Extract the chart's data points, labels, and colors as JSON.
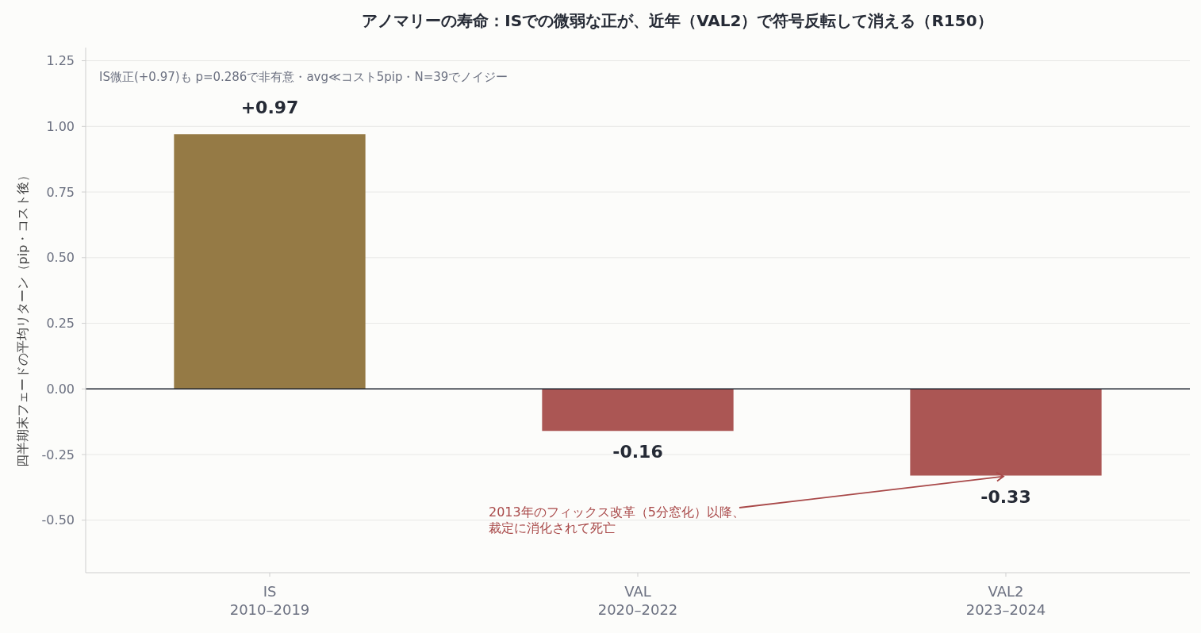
{
  "chart_data": {
    "type": "bar",
    "title": "アノマリーの寿命：ISでの微弱な正が、近年（VAL2）で符号反転して消える（R150）",
    "ylabel": "四半期末フェードの平均リターン（pip・コスト後）",
    "categories": [
      "IS\n2010–2019",
      "VAL\n2020–2022",
      "VAL2\n2023–2024"
    ],
    "values": [
      0.97,
      -0.16,
      -0.33
    ],
    "colors": [
      "#957a45",
      "#ab5654",
      "#ab5654"
    ],
    "value_labels": [
      "+0.97",
      "-0.16",
      "-0.33"
    ],
    "ylim": [
      -0.7,
      1.3
    ],
    "yticks": [
      {
        "value": -0.5,
        "label": "-0.50"
      },
      {
        "value": -0.25,
        "label": "-0.25"
      },
      {
        "value": 0,
        "label": "0.00"
      },
      {
        "value": 0.25,
        "label": "0.25"
      },
      {
        "value": 0.5,
        "label": "0.50"
      },
      {
        "value": 0.75,
        "label": "0.75"
      },
      {
        "value": 1,
        "label": "1.00"
      },
      {
        "value": 1.25,
        "label": "1.25"
      }
    ],
    "grid": "y",
    "ref_lines": [
      {
        "axis": "y",
        "value": 0,
        "color": "#1f2430"
      }
    ],
    "annotations": [
      "IS微正(+0.97)も p=0.286で非有意・avg≪コスト5pip・N=39でノイジー",
      {
        "text": "2013年のフィックス改革（5分窓化）以降、裁定に消化されて死亡",
        "x": "VAL2\n2023–2024",
        "y": -0.33
      }
    ]
  }
}
